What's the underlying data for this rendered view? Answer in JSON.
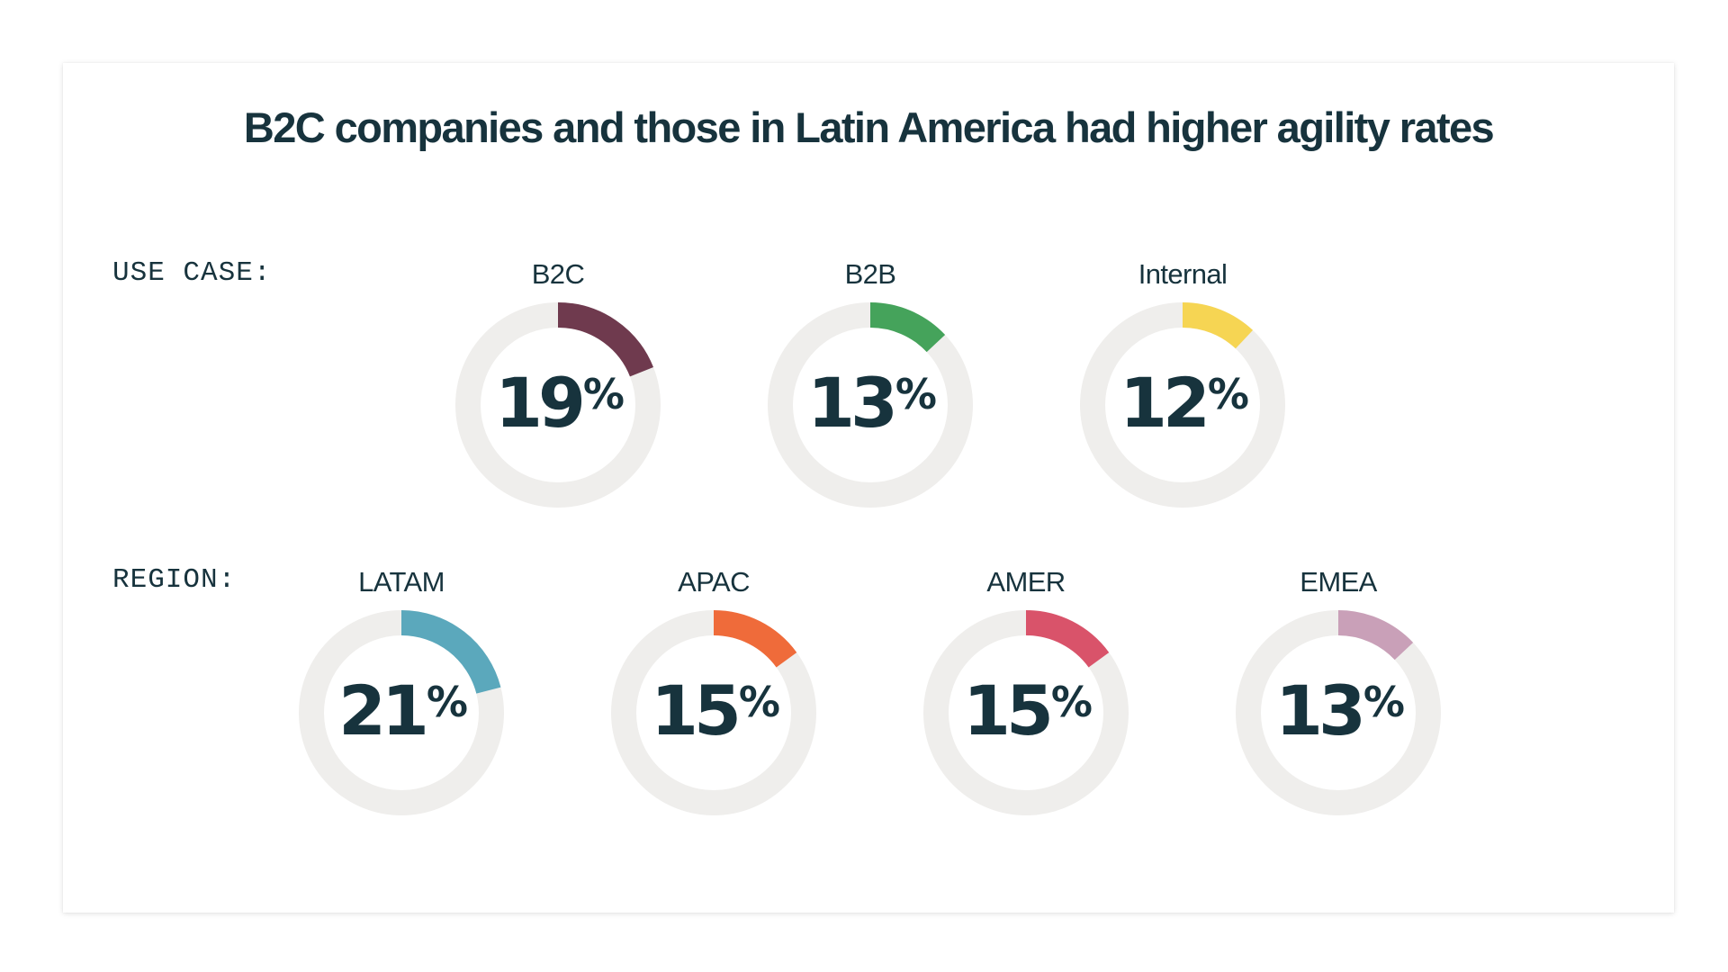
{
  "chart_data": {
    "type": "donut",
    "title": "B2C companies and those in Latin America had higher agility rates",
    "track_color": "#efeeec",
    "groups": [
      {
        "label": "USE CASE:",
        "items": [
          {
            "name": "B2C",
            "value": 19,
            "display": "19",
            "color": "#6f3a4e"
          },
          {
            "name": "B2B",
            "value": 13,
            "display": "13",
            "color": "#45a35b"
          },
          {
            "name": "Internal",
            "value": 12,
            "display": "12",
            "color": "#f6d553"
          }
        ]
      },
      {
        "label": "REGION:",
        "items": [
          {
            "name": "LATAM",
            "value": 21,
            "display": "21",
            "color": "#5ba8bc"
          },
          {
            "name": "APAC",
            "value": 15,
            "display": "15",
            "color": "#ef6b3a"
          },
          {
            "name": "AMER",
            "value": 15,
            "display": "15",
            "color": "#d9536a"
          },
          {
            "name": "EMEA",
            "value": 13,
            "display": "13",
            "color": "#c9a0b8"
          }
        ]
      }
    ]
  },
  "percent_sign": "%"
}
